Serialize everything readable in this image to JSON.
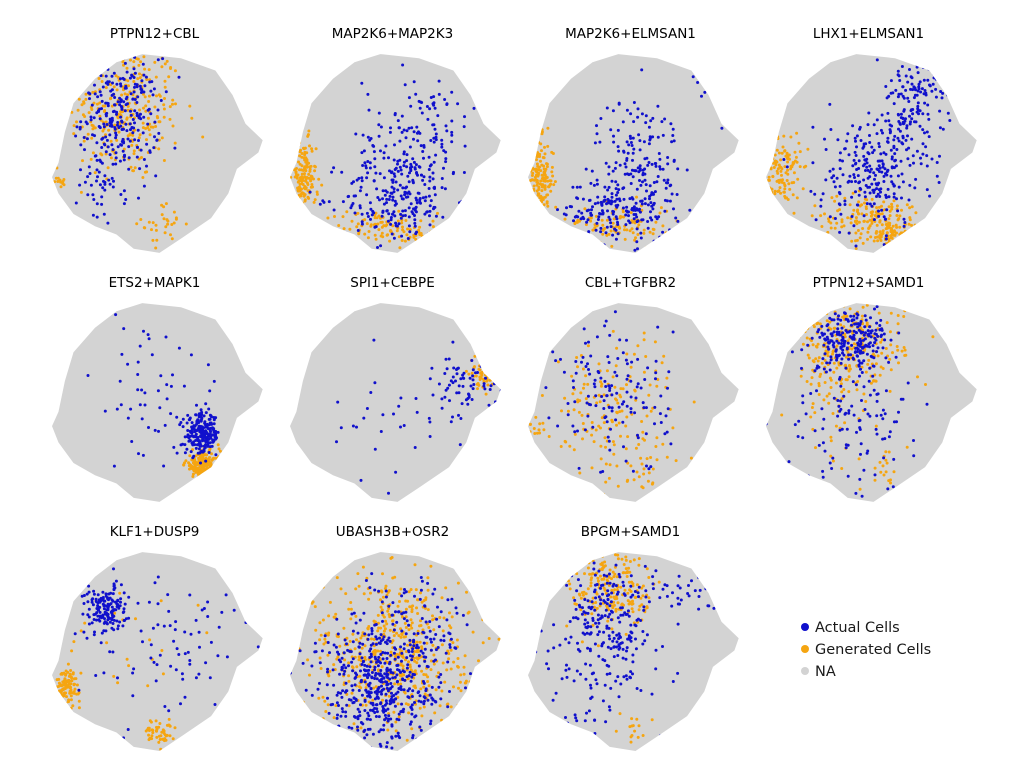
{
  "colors": {
    "actual": "#1010cc",
    "generated": "#f5a511",
    "na": "#d3d3d3"
  },
  "legend": {
    "placement": "bottom-right",
    "items": [
      {
        "label": "Actual Cells",
        "color_key": "actual"
      },
      {
        "label": "Generated Cells",
        "color_key": "generated"
      },
      {
        "label": "NA",
        "color_key": "na"
      }
    ]
  },
  "chart_data": [
    {
      "type": "scatter",
      "title": "PTPN12+CBL",
      "xlim": [
        0,
        1
      ],
      "ylim": [
        0,
        1
      ],
      "series": [
        {
          "name": "Actual Cells",
          "clusters": [
            {
              "x": 0.32,
              "y": 0.68,
              "sx": 0.09,
              "sy": 0.14,
              "n": 260
            },
            {
              "x": 0.25,
              "y": 0.35,
              "sx": 0.06,
              "sy": 0.1,
              "n": 40
            }
          ]
        },
        {
          "name": "Generated Cells",
          "clusters": [
            {
              "x": 0.34,
              "y": 0.7,
              "sx": 0.13,
              "sy": 0.17,
              "n": 280
            },
            {
              "x": 0.52,
              "y": 0.15,
              "sx": 0.05,
              "sy": 0.05,
              "n": 30
            },
            {
              "x": 0.04,
              "y": 0.38,
              "sx": 0.02,
              "sy": 0.03,
              "n": 12
            }
          ]
        }
      ]
    },
    {
      "type": "scatter",
      "title": "MAP2K6+MAP2K3",
      "xlim": [
        0,
        1
      ],
      "ylim": [
        0,
        1
      ],
      "series": [
        {
          "name": "Actual Cells",
          "clusters": [
            {
              "x": 0.5,
              "y": 0.28,
              "sx": 0.13,
              "sy": 0.11,
              "n": 210
            },
            {
              "x": 0.6,
              "y": 0.58,
              "sx": 0.13,
              "sy": 0.16,
              "n": 150
            }
          ]
        },
        {
          "name": "Generated Cells",
          "clusters": [
            {
              "x": 0.06,
              "y": 0.36,
              "sx": 0.03,
              "sy": 0.1,
              "n": 170
            },
            {
              "x": 0.4,
              "y": 0.14,
              "sx": 0.12,
              "sy": 0.04,
              "n": 80
            },
            {
              "x": 0.62,
              "y": 0.1,
              "sx": 0.04,
              "sy": 0.03,
              "n": 30
            }
          ]
        }
      ]
    },
    {
      "type": "scatter",
      "title": "MAP2K6+ELMSAN1",
      "xlim": [
        0,
        1
      ],
      "ylim": [
        0,
        1
      ],
      "series": [
        {
          "name": "Actual Cells",
          "clusters": [
            {
              "x": 0.42,
              "y": 0.22,
              "sx": 0.13,
              "sy": 0.08,
              "n": 200
            },
            {
              "x": 0.52,
              "y": 0.5,
              "sx": 0.1,
              "sy": 0.14,
              "n": 130
            },
            {
              "x": 0.85,
              "y": 0.83,
              "sx": 0.04,
              "sy": 0.08,
              "n": 20
            }
          ]
        },
        {
          "name": "Generated Cells",
          "clusters": [
            {
              "x": 0.06,
              "y": 0.36,
              "sx": 0.03,
              "sy": 0.1,
              "n": 160
            },
            {
              "x": 0.42,
              "y": 0.15,
              "sx": 0.14,
              "sy": 0.05,
              "n": 110
            }
          ]
        }
      ]
    },
    {
      "type": "scatter",
      "title": "LHX1+ELMSAN1",
      "xlim": [
        0,
        1
      ],
      "ylim": [
        0,
        1
      ],
      "series": [
        {
          "name": "Actual Cells",
          "clusters": [
            {
              "x": 0.5,
              "y": 0.4,
              "sx": 0.13,
              "sy": 0.14,
              "n": 260
            },
            {
              "x": 0.68,
              "y": 0.74,
              "sx": 0.08,
              "sy": 0.12,
              "n": 130
            },
            {
              "x": 0.8,
              "y": 0.88,
              "sx": 0.06,
              "sy": 0.05,
              "n": 40
            }
          ]
        },
        {
          "name": "Generated Cells",
          "clusters": [
            {
              "x": 0.08,
              "y": 0.4,
              "sx": 0.04,
              "sy": 0.1,
              "n": 120
            },
            {
              "x": 0.5,
              "y": 0.17,
              "sx": 0.15,
              "sy": 0.06,
              "n": 170
            },
            {
              "x": 0.58,
              "y": 0.1,
              "sx": 0.04,
              "sy": 0.03,
              "n": 60
            }
          ]
        }
      ]
    },
    {
      "type": "scatter",
      "title": "ETS2+MAPK1",
      "xlim": [
        0,
        1
      ],
      "ylim": [
        0,
        1
      ],
      "series": [
        {
          "name": "Actual Cells",
          "clusters": [
            {
              "x": 0.7,
              "y": 0.34,
              "sx": 0.04,
              "sy": 0.05,
              "n": 230
            },
            {
              "x": 0.45,
              "y": 0.55,
              "sx": 0.18,
              "sy": 0.18,
              "n": 60
            }
          ]
        },
        {
          "name": "Generated Cells",
          "clusters": [
            {
              "x": 0.7,
              "y": 0.19,
              "sx": 0.04,
              "sy": 0.035,
              "n": 200
            }
          ]
        }
      ]
    },
    {
      "type": "scatter",
      "title": "SPI1+CEBPE",
      "xlim": [
        0,
        1
      ],
      "ylim": [
        0,
        1
      ],
      "series": [
        {
          "name": "Actual Cells",
          "clusters": [
            {
              "x": 0.82,
              "y": 0.58,
              "sx": 0.07,
              "sy": 0.07,
              "n": 70
            },
            {
              "x": 0.45,
              "y": 0.4,
              "sx": 0.2,
              "sy": 0.15,
              "n": 35
            }
          ]
        },
        {
          "name": "Generated Cells",
          "clusters": [
            {
              "x": 0.9,
              "y": 0.64,
              "sx": 0.03,
              "sy": 0.04,
              "n": 70
            }
          ]
        }
      ]
    },
    {
      "type": "scatter",
      "title": "CBL+TGFBR2",
      "xlim": [
        0,
        1
      ],
      "ylim": [
        0,
        1
      ],
      "series": [
        {
          "name": "Actual Cells",
          "clusters": [
            {
              "x": 0.4,
              "y": 0.52,
              "sx": 0.13,
              "sy": 0.2,
              "n": 140
            }
          ]
        },
        {
          "name": "Generated Cells",
          "clusters": [
            {
              "x": 0.38,
              "y": 0.45,
              "sx": 0.15,
              "sy": 0.2,
              "n": 170
            },
            {
              "x": 0.05,
              "y": 0.36,
              "sx": 0.03,
              "sy": 0.04,
              "n": 15
            },
            {
              "x": 0.55,
              "y": 0.15,
              "sx": 0.04,
              "sy": 0.05,
              "n": 15
            }
          ]
        }
      ]
    },
    {
      "type": "scatter",
      "title": "PTPN12+SAMD1",
      "xlim": [
        0,
        1
      ],
      "ylim": [
        0,
        1
      ],
      "series": [
        {
          "name": "Actual Cells",
          "clusters": [
            {
              "x": 0.4,
              "y": 0.8,
              "sx": 0.09,
              "sy": 0.07,
              "n": 220
            },
            {
              "x": 0.4,
              "y": 0.45,
              "sx": 0.15,
              "sy": 0.2,
              "n": 130
            }
          ]
        },
        {
          "name": "Generated Cells",
          "clusters": [
            {
              "x": 0.38,
              "y": 0.78,
              "sx": 0.13,
              "sy": 0.1,
              "n": 230
            },
            {
              "x": 0.35,
              "y": 0.52,
              "sx": 0.12,
              "sy": 0.18,
              "n": 80
            },
            {
              "x": 0.55,
              "y": 0.15,
              "sx": 0.03,
              "sy": 0.05,
              "n": 15
            }
          ]
        }
      ]
    },
    {
      "type": "scatter",
      "title": "KLF1+DUSP9",
      "xlim": [
        0,
        1
      ],
      "ylim": [
        0,
        1
      ],
      "series": [
        {
          "name": "Actual Cells",
          "clusters": [
            {
              "x": 0.25,
              "y": 0.7,
              "sx": 0.05,
              "sy": 0.06,
              "n": 150
            },
            {
              "x": 0.5,
              "y": 0.55,
              "sx": 0.2,
              "sy": 0.2,
              "n": 90
            }
          ]
        },
        {
          "name": "Generated Cells",
          "clusters": [
            {
              "x": 0.07,
              "y": 0.33,
              "sx": 0.03,
              "sy": 0.04,
              "n": 110
            },
            {
              "x": 0.5,
              "y": 0.1,
              "sx": 0.04,
              "sy": 0.03,
              "n": 50
            },
            {
              "x": 0.35,
              "y": 0.55,
              "sx": 0.15,
              "sy": 0.15,
              "n": 25
            }
          ]
        }
      ]
    },
    {
      "type": "scatter",
      "title": "UBASH3B+OSR2",
      "xlim": [
        0,
        1
      ],
      "ylim": [
        0,
        1
      ],
      "series": [
        {
          "name": "Actual Cells",
          "clusters": [
            {
              "x": 0.42,
              "y": 0.32,
              "sx": 0.15,
              "sy": 0.15,
              "n": 500
            },
            {
              "x": 0.55,
              "y": 0.65,
              "sx": 0.15,
              "sy": 0.14,
              "n": 100
            }
          ]
        },
        {
          "name": "Generated Cells",
          "clusters": [
            {
              "x": 0.48,
              "y": 0.5,
              "sx": 0.18,
              "sy": 0.2,
              "n": 550
            }
          ]
        }
      ]
    },
    {
      "type": "scatter",
      "title": "BPGM+SAMD1",
      "xlim": [
        0,
        1
      ],
      "ylim": [
        0,
        1
      ],
      "series": [
        {
          "name": "Actual Cells",
          "clusters": [
            {
              "x": 0.38,
              "y": 0.65,
              "sx": 0.1,
              "sy": 0.15,
              "n": 200
            },
            {
              "x": 0.3,
              "y": 0.4,
              "sx": 0.12,
              "sy": 0.15,
              "n": 80
            },
            {
              "x": 0.7,
              "y": 0.8,
              "sx": 0.15,
              "sy": 0.06,
              "n": 40
            }
          ]
        },
        {
          "name": "Generated Cells",
          "clusters": [
            {
              "x": 0.4,
              "y": 0.8,
              "sx": 0.1,
              "sy": 0.1,
              "n": 200
            },
            {
              "x": 0.5,
              "y": 0.12,
              "sx": 0.03,
              "sy": 0.04,
              "n": 15
            }
          ]
        }
      ]
    }
  ]
}
